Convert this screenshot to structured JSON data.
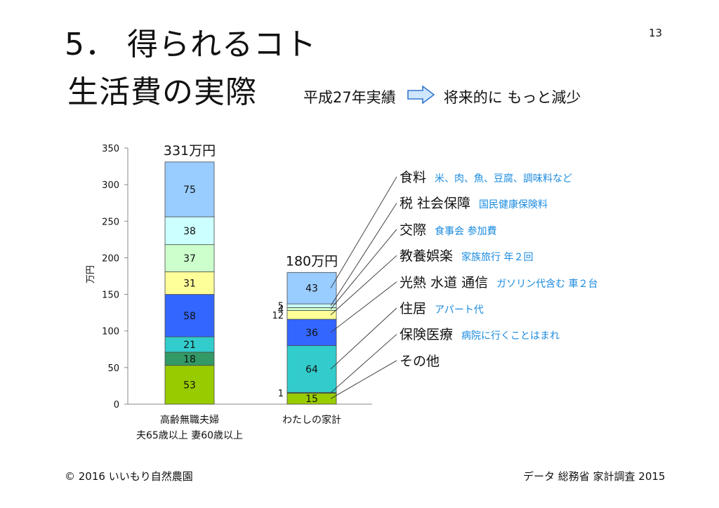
{
  "header": {
    "title_line1": "5． 得られるコト",
    "title_line2": "生活費の実際",
    "page_number": "13",
    "subtitle_left": "平成27年実績",
    "subtitle_right": "将来的に もっと減少",
    "arrow_icon": "right-arrow-icon"
  },
  "legend": [
    {
      "label": "食料",
      "note": "米、肉、魚、豆腐、調味料など"
    },
    {
      "label": "税 社会保障",
      "note": "国民健康保険料"
    },
    {
      "label": "交際",
      "note": "食事会 参加費"
    },
    {
      "label": "教養娯楽",
      "note": "家族旅行 年２回"
    },
    {
      "label": "光熱 水道 通信",
      "note": "ガソリン代含む 車２台"
    },
    {
      "label": "住居",
      "note": "アパート代"
    },
    {
      "label": "保険医療",
      "note": "病院に行くことはまれ"
    },
    {
      "label": "その他",
      "note": ""
    }
  ],
  "chart_data": {
    "type": "bar",
    "stacked": true,
    "ylabel": "万円",
    "ylim": [
      0,
      350
    ],
    "yticks": [
      0,
      50,
      100,
      150,
      200,
      250,
      300,
      350
    ],
    "categories": [
      "高齢無職夫婦",
      "わたしの家計"
    ],
    "category_sublabels": [
      "夫65歳以上 妻60歳以上",
      ""
    ],
    "totals": [
      "331万円",
      "180万円"
    ],
    "series": [
      {
        "name": "その他",
        "color": "#99cc00",
        "values": [
          53,
          15
        ]
      },
      {
        "name": "保険医療",
        "color": "#339966",
        "values": [
          18,
          1
        ]
      },
      {
        "name": "住居",
        "color": "#33cccc",
        "values": [
          21,
          64
        ]
      },
      {
        "name": "光熱 水道 通信",
        "color": "#3366ff",
        "values": [
          58,
          36
        ]
      },
      {
        "name": "教養娯楽",
        "color": "#ffff99",
        "values": [
          31,
          12
        ]
      },
      {
        "name": "交際",
        "color": "#ccffcc",
        "values": [
          37,
          4
        ]
      },
      {
        "name": "税 社会保障",
        "color": "#ccffff",
        "values": [
          38,
          5
        ]
      },
      {
        "name": "食料",
        "color": "#99ccff",
        "values": [
          75,
          43
        ]
      }
    ]
  },
  "footer": {
    "copyright": "© 2016 いいもり自然農園",
    "source": "データ 総務省 家計調査 2015"
  }
}
